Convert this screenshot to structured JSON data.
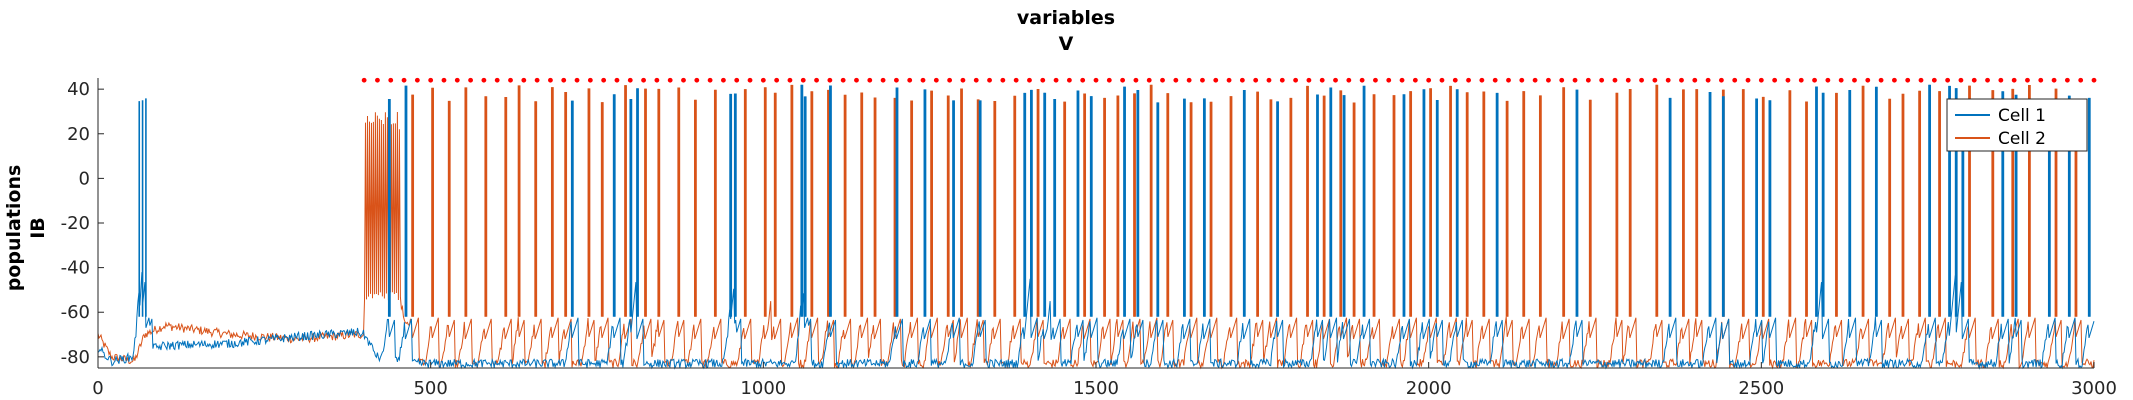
{
  "chart_data": {
    "type": "line",
    "title": [
      "variables",
      "V"
    ],
    "ylabel": [
      "populations",
      "IB"
    ],
    "xlabel": "",
    "xlim": [
      0,
      3000
    ],
    "ylim": [
      -85,
      45
    ],
    "x_ticks": [
      0,
      500,
      1000,
      1500,
      2000,
      2500,
      3000
    ],
    "x_tick_labels": [
      "0",
      "500",
      "1000",
      "1500",
      "2000",
      "2500",
      "3000"
    ],
    "y_ticks": [
      -80,
      -60,
      -40,
      -20,
      0,
      20,
      40
    ],
    "y_tick_labels": [
      "-80",
      "-60",
      "-40",
      "-20",
      "0",
      "20",
      "40"
    ],
    "grid": false,
    "legend_position": "top-right",
    "series": [
      {
        "name": "Cell 1",
        "color": "#0072BD",
        "baseline": [
          [
            0,
            -76
          ],
          [
            20,
            -82
          ],
          [
            55,
            -80
          ],
          [
            70,
            -77
          ],
          [
            100,
            -75
          ],
          [
            200,
            -74
          ],
          [
            300,
            -71
          ],
          [
            390,
            -69
          ],
          [
            400,
            -70
          ],
          [
            420,
            -80
          ],
          [
            460,
            -83
          ],
          [
            3000,
            -83
          ]
        ],
        "spikes": [
          62,
          67,
          72,
          437,
          462,
          712,
          775,
          800,
          810,
          950,
          957,
          1057,
          1062,
          1100,
          1200,
          1242,
          1285,
          1325,
          1392,
          1402,
          1422,
          1437,
          1472,
          1492,
          1542,
          1562,
          1592,
          1632,
          1662,
          1722,
          1772,
          1832,
          1852,
          1872,
          1902,
          1962,
          1992,
          2012,
          2042,
          2102,
          2222,
          2362,
          2422,
          2442,
          2492,
          2512,
          2582,
          2592,
          2632,
          2672,
          2752,
          2782,
          2792,
          2802,
          2862,
          2882,
          2932,
          2962,
          2992
        ]
      },
      {
        "name": "Cell 2",
        "color": "#D95319",
        "baseline": [
          [
            0,
            -70
          ],
          [
            20,
            -80
          ],
          [
            55,
            -82
          ],
          [
            70,
            -70
          ],
          [
            100,
            -66
          ],
          [
            200,
            -70
          ],
          [
            300,
            -72
          ],
          [
            390,
            -70
          ],
          [
            400,
            -70
          ],
          [
            410,
            -55
          ],
          [
            455,
            -55
          ],
          [
            470,
            -80
          ],
          [
            500,
            -83
          ],
          [
            3000,
            -83
          ]
        ],
        "spikes": [
          472,
          502,
          527,
          552,
          582,
          612,
          632,
          657,
          682,
          702,
          737,
          757,
          792,
          822,
          842,
          872,
          897,
          927,
          972,
          1002,
          1017,
          1042,
          1072,
          1097,
          1122,
          1147,
          1167,
          1197,
          1222,
          1252,
          1277,
          1297,
          1322,
          1347,
          1377,
          1412,
          1452,
          1482,
          1512,
          1532,
          1557,
          1582,
          1607,
          1642,
          1672,
          1702,
          1742,
          1762,
          1792,
          1817,
          1842,
          1867,
          1887,
          1917,
          1947,
          1972,
          2002,
          2032,
          2057,
          2082,
          2117,
          2142,
          2167,
          2202,
          2242,
          2282,
          2302,
          2342,
          2382,
          2402,
          2442,
          2472,
          2502,
          2542,
          2567,
          2612,
          2652,
          2692,
          2712,
          2737,
          2767,
          2812,
          2847,
          2877,
          2902,
          2942,
          2972
        ],
        "burst": {
          "start": 400,
          "end": 455,
          "low": -55,
          "high": 30
        }
      }
    ],
    "spike_markers": {
      "color": "#FF0000",
      "y": 44,
      "x": [
        400,
        420,
        440,
        460,
        480,
        500,
        520,
        540,
        560,
        580,
        600,
        620,
        640,
        660,
        680,
        700,
        720,
        740,
        760,
        780,
        800,
        820,
        840,
        860,
        880,
        900,
        920,
        940,
        960,
        980,
        1000,
        1020,
        1040,
        1060,
        1080,
        1100,
        1120,
        1140,
        1160,
        1180,
        1200,
        1220,
        1240,
        1260,
        1280,
        1300,
        1320,
        1340,
        1360,
        1380,
        1400,
        1420,
        1440,
        1460,
        1480,
        1500,
        1520,
        1540,
        1560,
        1580,
        1600,
        1620,
        1640,
        1660,
        1680,
        1700,
        1720,
        1740,
        1760,
        1780,
        1800,
        1820,
        1840,
        1860,
        1880,
        1900,
        1920,
        1940,
        1960,
        1980,
        2000,
        2020,
        2040,
        2060,
        2080,
        2100,
        2120,
        2140,
        2160,
        2180,
        2200,
        2220,
        2240,
        2260,
        2280,
        2300,
        2320,
        2340,
        2360,
        2380,
        2400,
        2420,
        2440,
        2460,
        2480,
        2500,
        2520,
        2540,
        2560,
        2580,
        2600,
        2620,
        2640,
        2660,
        2680,
        2700,
        2720,
        2740,
        2760,
        2780,
        2800,
        2820,
        2840,
        2860,
        2880,
        2900,
        2920,
        2940,
        2960,
        2980,
        3000
      ]
    }
  }
}
